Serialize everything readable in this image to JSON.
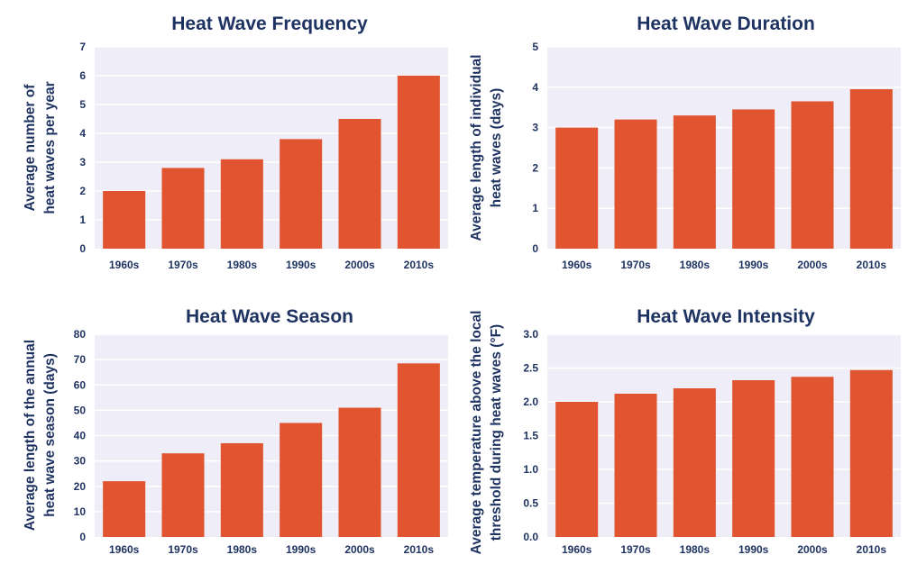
{
  "colors": {
    "bar": "#e05430",
    "plot_bg": "#efedf7",
    "grid": "#ffffff",
    "text": "#1f3362"
  },
  "chart_data": [
    {
      "type": "bar",
      "title": "Heat Wave Frequency",
      "ylabel": [
        "Average number of",
        "heat waves per year"
      ],
      "xlabel": "",
      "categories": [
        "1960s",
        "1970s",
        "1980s",
        "1990s",
        "2000s",
        "2010s"
      ],
      "values": [
        2.0,
        2.8,
        3.1,
        3.8,
        4.5,
        6.0
      ],
      "ylim": [
        0,
        7
      ],
      "yticks": [
        "0",
        "1",
        "2",
        "3",
        "4",
        "5",
        "6",
        "7"
      ],
      "grid": true
    },
    {
      "type": "bar",
      "title": "Heat Wave Duration",
      "ylabel": [
        "Average length of individual",
        "heat waves (days)"
      ],
      "xlabel": "",
      "categories": [
        "1960s",
        "1970s",
        "1980s",
        "1990s",
        "2000s",
        "2010s"
      ],
      "values": [
        3.0,
        3.2,
        3.3,
        3.45,
        3.65,
        3.95
      ],
      "ylim": [
        0,
        5
      ],
      "yticks": [
        "0",
        "1",
        "2",
        "3",
        "4",
        "5"
      ],
      "grid": true
    },
    {
      "type": "bar",
      "title": "Heat Wave Season",
      "ylabel": [
        "Average length of the annual",
        "heat wave season (days)"
      ],
      "xlabel": "",
      "categories": [
        "1960s",
        "1970s",
        "1980s",
        "1990s",
        "2000s",
        "2010s"
      ],
      "values": [
        22,
        33,
        37,
        45,
        51,
        68.5
      ],
      "ylim": [
        0,
        80
      ],
      "yticks": [
        "0",
        "10",
        "20",
        "30",
        "40",
        "50",
        "60",
        "70",
        "80"
      ],
      "grid": true
    },
    {
      "type": "bar",
      "title": "Heat Wave Intensity",
      "ylabel": [
        "Average temperature above the local",
        "threshold during heat waves (°F)"
      ],
      "xlabel": "",
      "categories": [
        "1960s",
        "1970s",
        "1980s",
        "1990s",
        "2000s",
        "2010s"
      ],
      "values": [
        2.0,
        2.12,
        2.2,
        2.32,
        2.37,
        2.47
      ],
      "ylim": [
        0,
        3.0
      ],
      "yticks": [
        "0.0",
        "0.5",
        "1.0",
        "1.5",
        "2.0",
        "2.5",
        "3.0"
      ],
      "grid": true
    }
  ]
}
